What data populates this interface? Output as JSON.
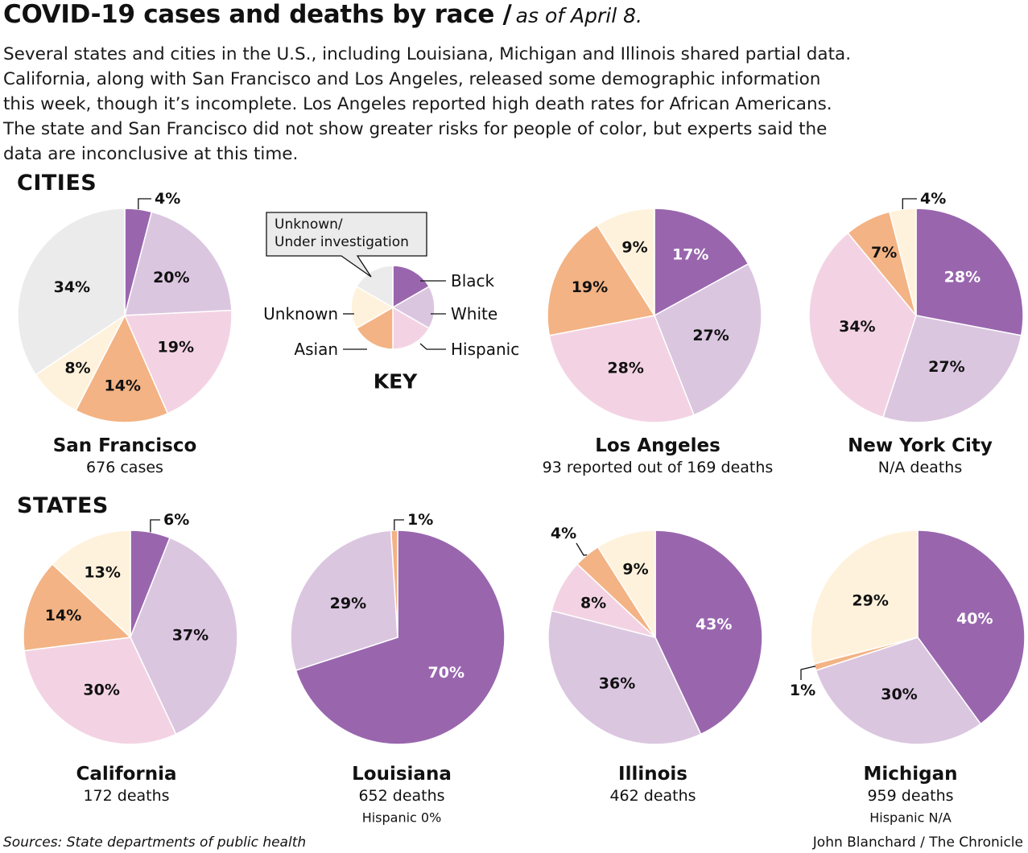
{
  "header": {
    "title": "COVID-19 cases and deaths by race /",
    "subtitle": "as of April 8.",
    "intro_lines": [
      "Several states and cities in the U.S., including Louisiana, Michigan and Illinois shared partial data.",
      "California, along with San Francisco and Los Angeles, released some demographic information",
      "this week, though it’s incomplete. Los Angeles reported high death rates for African Americans.",
      "The state and San Francisco did not show greater risks for people of color, but experts said the",
      "data are inconclusive at this time."
    ]
  },
  "sections": {
    "cities": "CITIES",
    "states": "STATES"
  },
  "colors": {
    "Black": "#9966ae",
    "White": "#dbc6e0",
    "Hispanic": "#f3d3e3",
    "Asian": "#f3b384",
    "Unknown": "#fff2dc",
    "Unknown/Under investigation": "#ebebeb"
  },
  "key": {
    "title": "KEY",
    "callout": [
      "Unknown/",
      "Under investigation"
    ],
    "labels": [
      "Black",
      "White",
      "Hispanic",
      "Asian",
      "Unknown"
    ]
  },
  "chart_data": [
    {
      "type": "pie",
      "title": "San Francisco",
      "subtitle": "676 cases",
      "slices": [
        {
          "category": "Black",
          "value": 4
        },
        {
          "category": "White",
          "value": 20
        },
        {
          "category": "Hispanic",
          "value": 19
        },
        {
          "category": "Asian",
          "value": 14
        },
        {
          "category": "Unknown",
          "value": 8
        },
        {
          "category": "Unknown/Under investigation",
          "value": 34
        }
      ]
    },
    {
      "type": "pie",
      "title": "Los Angeles",
      "subtitle": "93 reported out of 169 deaths",
      "slices": [
        {
          "category": "Black",
          "value": 17
        },
        {
          "category": "White",
          "value": 27
        },
        {
          "category": "Hispanic",
          "value": 28
        },
        {
          "category": "Asian",
          "value": 19
        },
        {
          "category": "Unknown",
          "value": 9
        }
      ]
    },
    {
      "type": "pie",
      "title": "New York City",
      "subtitle": "N/A deaths",
      "slices": [
        {
          "category": "Black",
          "value": 28
        },
        {
          "category": "White",
          "value": 27
        },
        {
          "category": "Hispanic",
          "value": 34
        },
        {
          "category": "Asian",
          "value": 7
        },
        {
          "category": "Unknown",
          "value": 4
        }
      ]
    },
    {
      "type": "pie",
      "title": "California",
      "subtitle": "172 deaths",
      "slices": [
        {
          "category": "Black",
          "value": 6
        },
        {
          "category": "White",
          "value": 37
        },
        {
          "category": "Hispanic",
          "value": 30
        },
        {
          "category": "Asian",
          "value": 14
        },
        {
          "category": "Unknown",
          "value": 13
        }
      ]
    },
    {
      "type": "pie",
      "title": "Louisiana",
      "subtitle": "652 deaths",
      "note": "Hispanic 0%",
      "slices": [
        {
          "category": "Black",
          "value": 70
        },
        {
          "category": "White",
          "value": 29
        },
        {
          "category": "Asian",
          "value": 1
        }
      ]
    },
    {
      "type": "pie",
      "title": "Illinois",
      "subtitle": "462 deaths",
      "slices": [
        {
          "category": "Black",
          "value": 43
        },
        {
          "category": "White",
          "value": 36
        },
        {
          "category": "Hispanic",
          "value": 8
        },
        {
          "category": "Asian",
          "value": 4
        },
        {
          "category": "Unknown",
          "value": 9
        }
      ]
    },
    {
      "type": "pie",
      "title": "Michigan",
      "subtitle": "959 deaths",
      "note": "Hispanic N/A",
      "slices": [
        {
          "category": "Black",
          "value": 40
        },
        {
          "category": "White",
          "value": 30
        },
        {
          "category": "Asian",
          "value": 1
        },
        {
          "category": "Unknown",
          "value": 29
        }
      ]
    }
  ],
  "footer": {
    "source": "Sources: State departments of public health",
    "credit": "John Blanchard / The Chronicle"
  }
}
